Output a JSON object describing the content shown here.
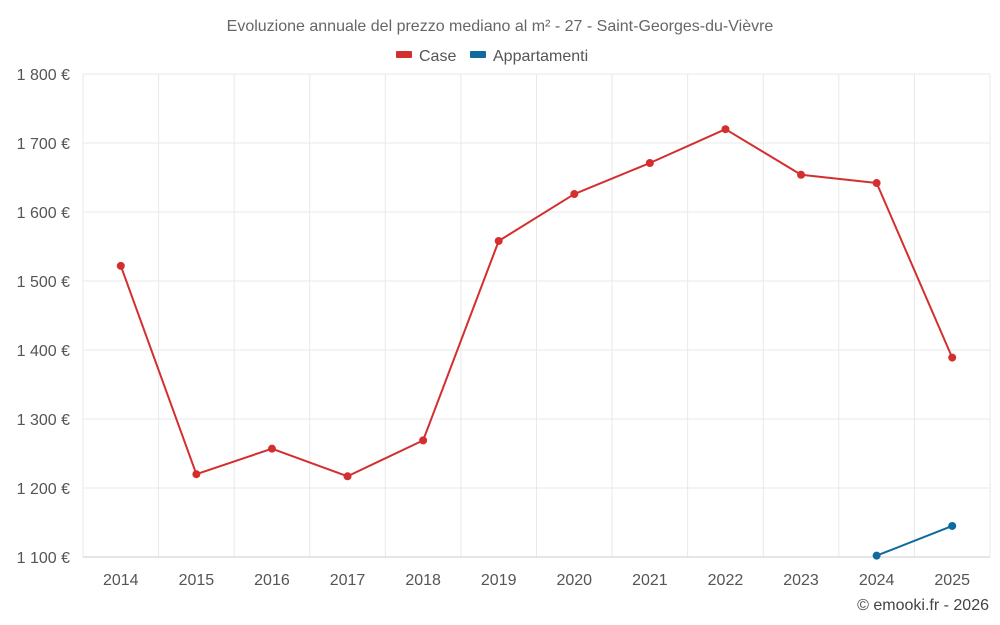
{
  "chart_data": {
    "type": "line",
    "title": "Evoluzione annuale del prezzo mediano al m² - 27 - Saint-Georges-du-Vièvre",
    "categories": [
      "2014",
      "2015",
      "2016",
      "2017",
      "2018",
      "2019",
      "2020",
      "2021",
      "2022",
      "2023",
      "2024",
      "2025"
    ],
    "series": [
      {
        "name": "Case",
        "color": "#d32f2f",
        "values": [
          1522,
          1220,
          1257,
          1217,
          1269,
          1558,
          1626,
          1671,
          1720,
          1654,
          1642,
          1389
        ]
      },
      {
        "name": "Appartamenti",
        "color": "#0f6aa0",
        "values": [
          null,
          null,
          null,
          null,
          null,
          null,
          null,
          null,
          null,
          null,
          1102,
          1145
        ]
      }
    ],
    "ylim": [
      1100,
      1800
    ],
    "yticks": [
      1100,
      1200,
      1300,
      1400,
      1500,
      1600,
      1700,
      1800
    ],
    "ytick_labels": [
      "1 100 €",
      "1 200 €",
      "1 300 €",
      "1 400 €",
      "1 500 €",
      "1 600 €",
      "1 700 €",
      "1 800 €"
    ],
    "grid": true,
    "legend_position": "top-center",
    "xlabel": "",
    "ylabel": ""
  },
  "credit": "© emooki.fr - 2026"
}
